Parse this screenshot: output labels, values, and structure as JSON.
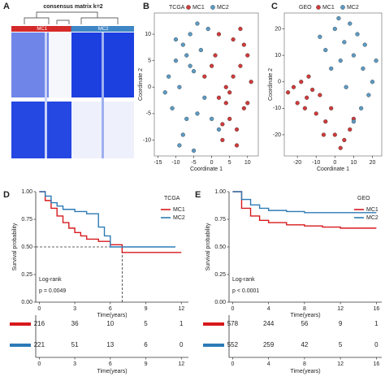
{
  "chart_data": [
    {
      "type": "heatmap",
      "panel": "A",
      "title": "consensus matrix k=2",
      "groups": [
        {
          "name": "MC1",
          "color": "#d42a2a"
        },
        {
          "name": "MC2",
          "color": "#3f86c6"
        }
      ]
    },
    {
      "type": "scatter",
      "panel": "B",
      "legend_title": "TCGA",
      "xlabel": "Coordinate 1",
      "ylabel": "Coordinate 2",
      "xlim": [
        -16,
        13
      ],
      "ylim": [
        -13,
        14
      ],
      "xticks": [
        -15,
        -10,
        -5,
        0,
        5,
        10
      ],
      "yticks": [
        -10,
        -5,
        0,
        5,
        10
      ],
      "series": [
        {
          "name": "MC1",
          "color": "#d13a3a",
          "x": [
            2,
            4,
            6,
            8,
            10,
            5,
            7,
            9,
            3,
            1,
            6,
            8,
            11,
            4,
            0,
            -2,
            7,
            9,
            5,
            3,
            10,
            2
          ],
          "y": [
            -2,
            0,
            2,
            4,
            6,
            -6,
            -8,
            -4,
            -10,
            6,
            9,
            11,
            1,
            -3,
            4,
            2,
            -11,
            8,
            -1,
            -7,
            -3,
            10
          ]
        },
        {
          "name": "MC2",
          "color": "#5b9bc4",
          "x": [
            -12,
            -10,
            -8,
            -6,
            -4,
            -2,
            -11,
            -9,
            -7,
            -5,
            -3,
            -13,
            -8,
            -6,
            -10,
            -4,
            -1,
            2,
            -9,
            -5,
            0,
            -7
          ],
          "y": [
            2,
            5,
            8,
            10,
            12,
            -2,
            -4,
            0,
            -6,
            3,
            7,
            -1,
            -9,
            4,
            9,
            -5,
            11,
            -8,
            -11,
            -12,
            -6,
            6
          ]
        }
      ]
    },
    {
      "type": "scatter",
      "panel": "C",
      "legend_title": "GEO",
      "xlabel": "Coordinate 1",
      "ylabel": "Coordinate 2",
      "xlim": [
        -27,
        25
      ],
      "ylim": [
        -28,
        26
      ],
      "xticks": [
        -20,
        -10,
        0,
        10,
        20
      ],
      "yticks": [
        -20,
        -10,
        0,
        10,
        20
      ],
      "series": [
        {
          "name": "MC1",
          "color": "#d13a3a",
          "x": [
            -22,
            -18,
            -15,
            -12,
            -20,
            -16,
            -10,
            -5,
            0,
            5,
            8,
            -8,
            -14,
            -2,
            3,
            10,
            -25,
            -6
          ],
          "y": [
            -2,
            0,
            -6,
            -3,
            -8,
            -10,
            -12,
            -15,
            -20,
            -22,
            -18,
            -5,
            2,
            -10,
            -25,
            -14,
            -4,
            -20
          ]
        },
        {
          "name": "MC2",
          "color": "#5b9bc4",
          "x": [
            0,
            5,
            10,
            15,
            20,
            -5,
            8,
            12,
            3,
            -2,
            18,
            6,
            14,
            -8,
            22,
            2,
            10,
            16
          ],
          "y": [
            20,
            15,
            10,
            5,
            0,
            12,
            22,
            18,
            8,
            5,
            -5,
            -2,
            -10,
            17,
            8,
            24,
            -15,
            14
          ]
        }
      ]
    },
    {
      "type": "step",
      "panel": "D",
      "legend_title": "TCGA",
      "xlabel": "Time(years)",
      "ylabel": "Survival probability",
      "xlim": [
        -0.3,
        12.6
      ],
      "ylim": [
        0,
        1
      ],
      "xticks": [
        0,
        3,
        6,
        9,
        12
      ],
      "yticks": [
        {
          "value": 0,
          "label": "0.00"
        },
        {
          "value": 0.25,
          "label": "0.25"
        },
        {
          "value": 0.5,
          "label": "0.50"
        },
        {
          "value": 0.75,
          "label": "0.75"
        },
        {
          "value": 1,
          "label": "1.00"
        }
      ],
      "series": [
        {
          "name": "MC1",
          "color": "#d7191c",
          "x": [
            0,
            0.5,
            1,
            1.5,
            2,
            2.5,
            3,
            3.5,
            4,
            5,
            6,
            7,
            12
          ],
          "y": [
            1,
            0.92,
            0.85,
            0.78,
            0.72,
            0.67,
            0.63,
            0.6,
            0.57,
            0.55,
            0.52,
            0.45,
            0.45
          ]
        },
        {
          "name": "MC2",
          "color": "#2c7bb6",
          "x": [
            0,
            0.5,
            1,
            1.5,
            2,
            3,
            4,
            4.5,
            5,
            5.5,
            6,
            7,
            11.5
          ],
          "y": [
            1,
            0.96,
            0.9,
            0.87,
            0.84,
            0.82,
            0.8,
            0.8,
            0.68,
            0.6,
            0.5,
            0.5,
            0.5
          ]
        }
      ],
      "reference": {
        "x": 7,
        "y": 0.5
      },
      "annotations": [
        "Log-rank",
        "p = 0.0049"
      ],
      "risk_table": [
        [
          216,
          36,
          10,
          5,
          1
        ],
        [
          221,
          51,
          13,
          6,
          0
        ]
      ]
    },
    {
      "type": "step",
      "panel": "E",
      "legend_title": "GEO",
      "xlabel": "Time(years)",
      "ylabel": "Survival probability",
      "xlim": [
        -0.4,
        16.6
      ],
      "ylim": [
        0,
        1
      ],
      "xticks": [
        0,
        4,
        8,
        12,
        16
      ],
      "yticks": [
        {
          "value": 0,
          "label": "0.00"
        },
        {
          "value": 0.25,
          "label": "0.25"
        },
        {
          "value": 0.5,
          "label": "0.50"
        },
        {
          "value": 0.75,
          "label": "0.75"
        },
        {
          "value": 1,
          "label": "1.00"
        }
      ],
      "series": [
        {
          "name": "MC1",
          "color": "#d7191c",
          "x": [
            0,
            1,
            2,
            3,
            4,
            6,
            8,
            10,
            12,
            16
          ],
          "y": [
            1,
            0.85,
            0.78,
            0.74,
            0.72,
            0.7,
            0.69,
            0.68,
            0.67,
            0.67
          ]
        },
        {
          "name": "MC2",
          "color": "#2c7bb6",
          "x": [
            0,
            1,
            2,
            3,
            4,
            6,
            8,
            10,
            12,
            16
          ],
          "y": [
            1,
            0.93,
            0.88,
            0.85,
            0.83,
            0.82,
            0.81,
            0.81,
            0.81,
            0.81
          ]
        }
      ],
      "annotations": [
        "Log-rank",
        "p < 0.0001"
      ],
      "risk_table": [
        [
          578,
          244,
          56,
          9,
          1
        ],
        [
          552,
          259,
          42,
          5,
          0
        ]
      ]
    }
  ]
}
